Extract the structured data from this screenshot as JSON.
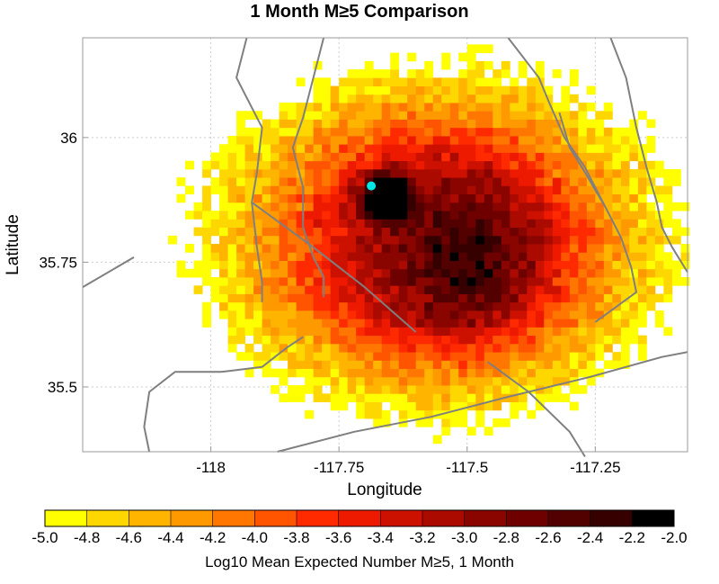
{
  "chart_data": {
    "type": "heatmap",
    "title": "1 Month M≥5 Comparison",
    "xlabel": "Longitude",
    "ylabel": "Latitude",
    "xlim": [
      -118.25,
      -117.07
    ],
    "ylim": [
      35.37,
      36.2
    ],
    "x_ticks": [
      "-118",
      "-117.75",
      "-117.5",
      "-117.25"
    ],
    "x_tick_values": [
      -118,
      -117.75,
      -117.5,
      -117.25
    ],
    "y_ticks": [
      "35.5",
      "35.75",
      "36"
    ],
    "y_tick_values": [
      35.5,
      35.75,
      36
    ],
    "grid": true,
    "grid_cell_deg": 0.1,
    "grid_origin": [
      -118.25,
      35.37
    ],
    "colorbar": {
      "label": "Log10 Mean Expected Number M≥5, 1 Month",
      "bins": [
        -5.0,
        -4.8,
        -4.6,
        -4.4,
        -4.2,
        -4.0,
        -3.8,
        -3.6,
        -3.4,
        -3.2,
        -3.0,
        -2.8,
        -2.6,
        -2.4,
        -2.2,
        -2.0
      ],
      "tick_labels": [
        "-5.0",
        "-4.8",
        "-4.6",
        "-4.4",
        "-4.2",
        "-4.0",
        "-3.8",
        "-3.6",
        "-3.4",
        "-3.2",
        "-3.0",
        "-2.8",
        "-2.6",
        "-2.4",
        "-2.2",
        "-2.0"
      ],
      "colors": [
        "#ffff00",
        "#ffd700",
        "#ffb400",
        "#ff9900",
        "#ff7700",
        "#ff5500",
        "#ff2a00",
        "#ee1a00",
        "#cc1100",
        "#aa0a00",
        "#8a0500",
        "#6e0000",
        "#520000",
        "#360000",
        "#000000"
      ]
    },
    "hotspots": [
      {
        "lon": -117.66,
        "lat": 35.88,
        "sigma": 0.03,
        "peak": 0.95
      },
      {
        "lon": -117.49,
        "lat": 35.74,
        "sigma": 0.1,
        "peak": 0.28
      },
      {
        "lon": -117.55,
        "lat": 35.8,
        "sigma": 0.14,
        "peak": 0.3
      }
    ],
    "base_level": -3.7,
    "falloff_center": [
      -117.56,
      35.79
    ],
    "falloff_radius": [
      0.47,
      0.35
    ],
    "annotations": [
      {
        "type": "marker",
        "shape": "circle",
        "color": "#00e5e5",
        "lon": -117.687,
        "lat": 35.903
      }
    ],
    "faults": [
      [
        [
          -117.93,
          36.2
        ],
        [
          -117.95,
          36.12
        ],
        [
          -117.9,
          36.02
        ],
        [
          -117.91,
          35.93
        ],
        [
          -117.92,
          35.87
        ],
        [
          -117.91,
          35.78
        ],
        [
          -117.9,
          35.71
        ],
        [
          -117.9,
          35.67
        ]
      ],
      [
        [
          -117.78,
          36.2
        ],
        [
          -117.8,
          36.12
        ],
        [
          -117.82,
          36.04
        ],
        [
          -117.84,
          35.98
        ],
        [
          -117.82,
          35.9
        ],
        [
          -117.82,
          35.82
        ],
        [
          -117.8,
          35.76
        ],
        [
          -117.78,
          35.72
        ],
        [
          -117.78,
          35.68
        ]
      ],
      [
        [
          -117.92,
          35.87
        ],
        [
          -117.8,
          35.78
        ],
        [
          -117.7,
          35.7
        ],
        [
          -117.6,
          35.61
        ]
      ],
      [
        [
          -118.25,
          35.7
        ],
        [
          -118.15,
          35.76
        ]
      ],
      [
        [
          -118.12,
          35.37
        ],
        [
          -118.13,
          35.42
        ],
        [
          -118.12,
          35.49
        ],
        [
          -118.07,
          35.53
        ],
        [
          -117.98,
          35.53
        ],
        [
          -117.9,
          35.54
        ],
        [
          -117.85,
          35.58
        ],
        [
          -117.82,
          35.6
        ]
      ],
      [
        [
          -117.87,
          35.37
        ],
        [
          -117.72,
          35.41
        ],
        [
          -117.57,
          35.44
        ],
        [
          -117.42,
          35.48
        ],
        [
          -117.26,
          35.52
        ],
        [
          -117.12,
          35.56
        ],
        [
          -117.07,
          35.57
        ]
      ],
      [
        [
          -117.46,
          35.55
        ],
        [
          -117.38,
          35.49
        ],
        [
          -117.3,
          35.41
        ],
        [
          -117.27,
          35.36
        ]
      ],
      [
        [
          -117.42,
          36.2
        ],
        [
          -117.36,
          36.12
        ],
        [
          -117.34,
          36.07
        ],
        [
          -117.31,
          36.0
        ],
        [
          -117.27,
          35.94
        ],
        [
          -117.24,
          35.88
        ],
        [
          -117.2,
          35.8
        ],
        [
          -117.18,
          35.74
        ],
        [
          -117.17,
          35.69
        ],
        [
          -117.21,
          35.66
        ],
        [
          -117.25,
          35.63
        ]
      ],
      [
        [
          -117.22,
          36.2
        ],
        [
          -117.19,
          36.12
        ],
        [
          -117.17,
          36.02
        ],
        [
          -117.15,
          35.94
        ],
        [
          -117.13,
          35.87
        ],
        [
          -117.12,
          35.82
        ],
        [
          -117.1,
          35.78
        ],
        [
          -117.07,
          35.73
        ]
      ],
      [
        [
          -117.32,
          36.05
        ],
        [
          -117.3,
          35.98
        ],
        [
          -117.27,
          35.93
        ],
        [
          -117.23,
          35.86
        ]
      ]
    ]
  }
}
